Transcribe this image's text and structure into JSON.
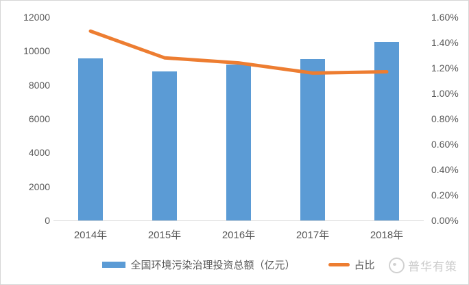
{
  "chart_data": {
    "type": "bar",
    "subtype": "combo-bar-line",
    "title": "",
    "categories": [
      "2014年",
      "2015年",
      "2016年",
      "2017年",
      "2018年"
    ],
    "series": [
      {
        "name": "全国环境污染治理投资总额（亿元）",
        "type": "bar",
        "axis": "left",
        "values": [
          9576,
          8806,
          9220,
          9539,
          10523
        ],
        "color": "#5B9BD5"
      },
      {
        "name": "占比",
        "type": "line",
        "axis": "right",
        "unit": "%",
        "values": [
          1.49,
          1.28,
          1.24,
          1.16,
          1.17
        ],
        "color": "#ED7D31"
      }
    ],
    "left_axis": {
      "min": 0,
      "max": 12000,
      "step": 2000,
      "tick_labels": [
        "0",
        "2000",
        "4000",
        "6000",
        "8000",
        "10000",
        "12000"
      ]
    },
    "right_axis": {
      "min": 0,
      "max": 1.6,
      "step": 0.2,
      "tick_labels": [
        "0.00%",
        "0.20%",
        "0.40%",
        "0.60%",
        "0.80%",
        "1.00%",
        "1.20%",
        "1.40%",
        "1.60%"
      ]
    },
    "grid": false,
    "legend_position": "bottom"
  },
  "watermark": {
    "text": "普华有策"
  },
  "colors": {
    "bar": "#5B9BD5",
    "line": "#ED7D31",
    "axis_text": "#595959",
    "axis_line": "#D9D9D9",
    "watermark_text": "#C3C3C3",
    "frame_border": "#D6D6D6",
    "background": "#FFFFFF"
  }
}
